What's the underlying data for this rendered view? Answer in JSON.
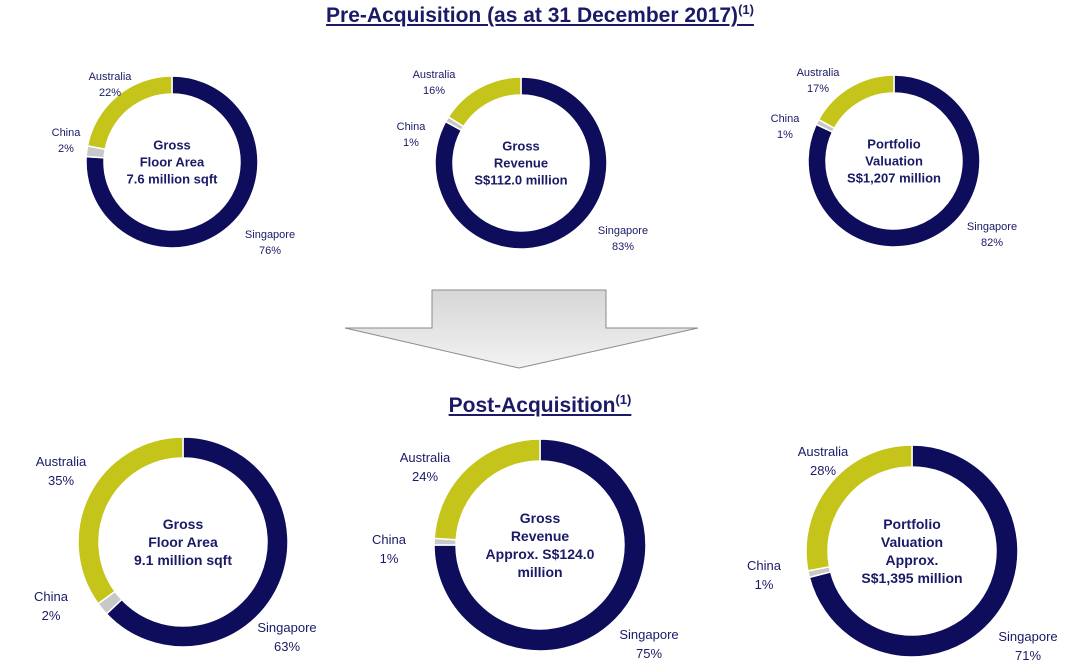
{
  "titles": {
    "pre": "Pre-Acquisition (as at 31 December 2017)",
    "pre_sup": "(1)",
    "post": "Post-Acquisition",
    "post_sup": "(1)"
  },
  "colors": {
    "Singapore": "#0d0d5c",
    "Australia": "#c4c41a",
    "China": "#c8c8c8"
  },
  "chart_data": [
    {
      "type": "pie",
      "id": "pre-gfa",
      "group": "pre",
      "center_label": [
        "Gross",
        "Floor Area",
        "7.6 million sqft"
      ],
      "slices": [
        {
          "name": "Singapore",
          "value": 76
        },
        {
          "name": "China",
          "value": 2
        },
        {
          "name": "Australia",
          "value": 22
        }
      ]
    },
    {
      "type": "pie",
      "id": "pre-revenue",
      "group": "pre",
      "center_label": [
        "Gross",
        "Revenue",
        "S$112.0 million"
      ],
      "slices": [
        {
          "name": "Singapore",
          "value": 83
        },
        {
          "name": "China",
          "value": 1
        },
        {
          "name": "Australia",
          "value": 16
        }
      ]
    },
    {
      "type": "pie",
      "id": "pre-valuation",
      "group": "pre",
      "center_label": [
        "Portfolio",
        "Valuation",
        "S$1,207 million"
      ],
      "slices": [
        {
          "name": "Singapore",
          "value": 82
        },
        {
          "name": "China",
          "value": 1
        },
        {
          "name": "Australia",
          "value": 17
        }
      ]
    },
    {
      "type": "pie",
      "id": "post-gfa",
      "group": "post",
      "center_label": [
        "Gross",
        "Floor Area",
        "9.1 million sqft"
      ],
      "slices": [
        {
          "name": "Singapore",
          "value": 63
        },
        {
          "name": "China",
          "value": 2
        },
        {
          "name": "Australia",
          "value": 35
        }
      ]
    },
    {
      "type": "pie",
      "id": "post-revenue",
      "group": "post",
      "center_label": [
        "Gross",
        "Revenue",
        "Approx. S$124.0",
        "million"
      ],
      "slices": [
        {
          "name": "Singapore",
          "value": 75
        },
        {
          "name": "China",
          "value": 1
        },
        {
          "name": "Australia",
          "value": 24
        }
      ]
    },
    {
      "type": "pie",
      "id": "post-valuation",
      "group": "post",
      "center_label": [
        "Portfolio",
        "Valuation",
        "Approx.",
        "S$1,395 million"
      ],
      "slices": [
        {
          "name": "Singapore",
          "value": 71
        },
        {
          "name": "China",
          "value": 1
        },
        {
          "name": "Australia",
          "value": 28
        }
      ]
    }
  ]
}
